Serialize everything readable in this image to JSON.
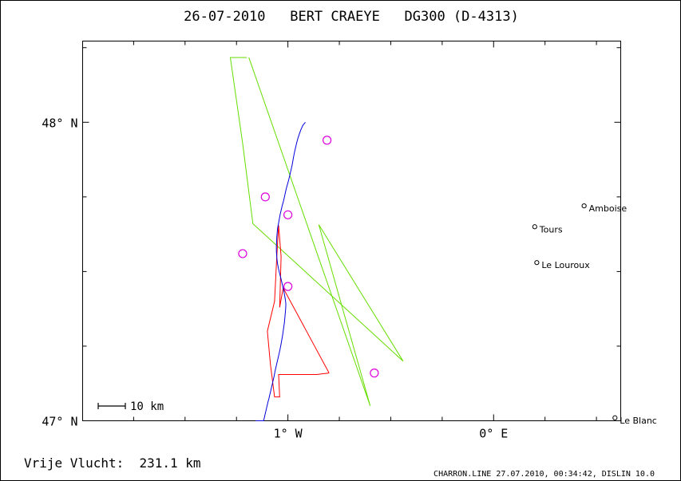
{
  "chart_data": {
    "type": "line",
    "title": "26-07-2010   BERT CRAEYE   DG300 (D-4313)",
    "xlabel": "",
    "ylabel": "",
    "xlim": [
      -1.998,
      0.618
    ],
    "ylim": [
      47.0,
      48.272
    ],
    "x_ticks": [
      {
        "value": -1.0,
        "label": "1° W"
      },
      {
        "value": 0.0,
        "label": "0° E"
      }
    ],
    "y_ticks": [
      {
        "value": 47.0,
        "label": "47° N"
      },
      {
        "value": 48.0,
        "label": "48° N"
      }
    ],
    "series": [
      {
        "color": "#66dd00",
        "x": [
          -1.19,
          -0.6,
          -0.85,
          -0.44,
          -1.17,
          -1.22,
          -1.28,
          -1.2
        ],
        "y": [
          48.217,
          47.05,
          47.657,
          47.2,
          47.66,
          47.93,
          48.217,
          48.217
        ]
      },
      {
        "color": "#ff0000",
        "x": [
          -0.8,
          -1.023,
          -1.04,
          -1.033,
          -1.045,
          -1.045,
          -1.055,
          -1.065,
          -1.1,
          -1.085,
          -1.065,
          -1.04,
          -1.045,
          -0.96,
          -0.86,
          -0.8
        ],
        "y": [
          47.16,
          47.445,
          47.38,
          47.55,
          47.655,
          47.655,
          47.54,
          47.4,
          47.3,
          47.19,
          47.08,
          47.08,
          47.155,
          47.155,
          47.155,
          47.16
        ]
      },
      {
        "color": "#0000dd",
        "x": [
          -0.915,
          -0.927,
          -0.937,
          -0.945,
          -0.952,
          -0.958,
          -0.963,
          -0.968,
          -0.972,
          -0.976,
          -0.98,
          -0.985,
          -0.99,
          -0.995,
          -1.001,
          -1.007,
          -1.012,
          -1.017,
          -1.022,
          -1.028,
          -1.033,
          -1.038,
          -1.042,
          -1.046,
          -1.05,
          -1.052,
          -1.054,
          -1.055,
          -1.056,
          -1.056,
          -1.055,
          -1.053,
          -1.05,
          -1.046,
          -1.041,
          -1.035,
          -1.03,
          -1.025,
          -1.02,
          -1.016,
          -1.012,
          -1.01,
          -1.011,
          -1.013,
          -1.015,
          -1.017,
          -1.02,
          -1.023,
          -1.026,
          -1.03,
          -1.034,
          -1.038,
          -1.043,
          -1.048,
          -1.053,
          -1.058,
          -1.063,
          -1.067,
          -1.072,
          -1.077,
          -1.082,
          -1.087,
          -1.092,
          -1.098,
          -1.103,
          -1.108,
          -1.113,
          -1.118,
          -1.124,
          -1.13,
          -1.136,
          -1.141,
          -1.146,
          -1.151,
          -1.156
        ],
        "y": [
          48.0,
          47.99,
          47.975,
          47.96,
          47.945,
          47.93,
          47.915,
          47.9,
          47.885,
          47.87,
          47.855,
          47.84,
          47.825,
          47.81,
          47.795,
          47.78,
          47.765,
          47.75,
          47.735,
          47.72,
          47.705,
          47.69,
          47.675,
          47.66,
          47.645,
          47.63,
          47.615,
          47.6,
          47.585,
          47.57,
          47.555,
          47.54,
          47.525,
          47.51,
          47.495,
          47.48,
          47.465,
          47.45,
          47.435,
          47.42,
          47.405,
          47.39,
          47.375,
          47.36,
          47.345,
          47.33,
          47.315,
          47.3,
          47.285,
          47.27,
          47.255,
          47.24,
          47.225,
          47.21,
          47.195,
          47.18,
          47.165,
          47.15,
          47.135,
          47.12,
          47.105,
          47.09,
          47.075,
          47.06,
          47.045,
          47.03,
          47.015,
          47.0,
          47.0,
          47.0,
          47.0,
          47.0,
          47.0,
          47.0,
          47.0
        ]
      }
    ],
    "turnpoints": [
      {
        "x": -0.81,
        "y": 47.94
      },
      {
        "x": -1.11,
        "y": 47.75
      },
      {
        "x": -1.0,
        "y": 47.69
      },
      {
        "x": -1.22,
        "y": 47.56
      },
      {
        "x": -1.0,
        "y": 47.45
      },
      {
        "x": -0.58,
        "y": 47.16
      }
    ],
    "towns": [
      {
        "name": "Amboise",
        "x": 0.44,
        "y": 47.72
      },
      {
        "name": "Tours",
        "x": 0.2,
        "y": 47.65
      },
      {
        "name": "Le Louroux",
        "x": 0.21,
        "y": 47.53
      },
      {
        "name": "Le Blanc",
        "x": 0.59,
        "y": 47.01
      }
    ],
    "scale_bar": {
      "label": "10 km",
      "km": 10
    }
  },
  "footer": {
    "distance": "Vrije Vlucht:  231.1 km",
    "program": "CHARRON.LINE 27.07.2010, 00:34:42, DISLIN 10.0"
  }
}
